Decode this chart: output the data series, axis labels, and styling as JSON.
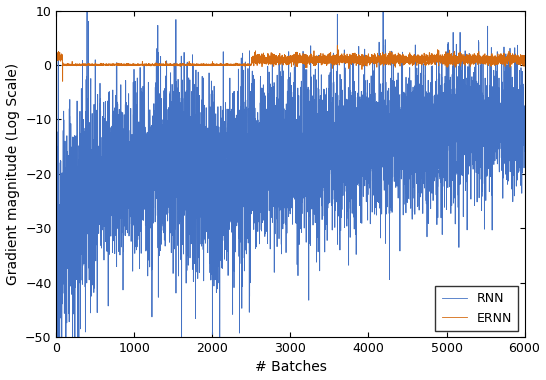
{
  "title": "",
  "xlabel": "# Batches",
  "ylabel": "Gradient magnitude (Log Scale)",
  "xlim": [
    0,
    6000
  ],
  "ylim": [
    -50,
    10
  ],
  "yticks": [
    -50,
    -40,
    -30,
    -20,
    -10,
    0,
    10
  ],
  "xticks": [
    0,
    1000,
    2000,
    3000,
    4000,
    5000,
    6000
  ],
  "rnn_color": "#4472c4",
  "ernn_color": "#d46a10",
  "legend_labels": [
    "RNN",
    "ERNN"
  ],
  "n_points": 6000,
  "figsize": [
    5.46,
    3.8
  ],
  "dpi": 100
}
